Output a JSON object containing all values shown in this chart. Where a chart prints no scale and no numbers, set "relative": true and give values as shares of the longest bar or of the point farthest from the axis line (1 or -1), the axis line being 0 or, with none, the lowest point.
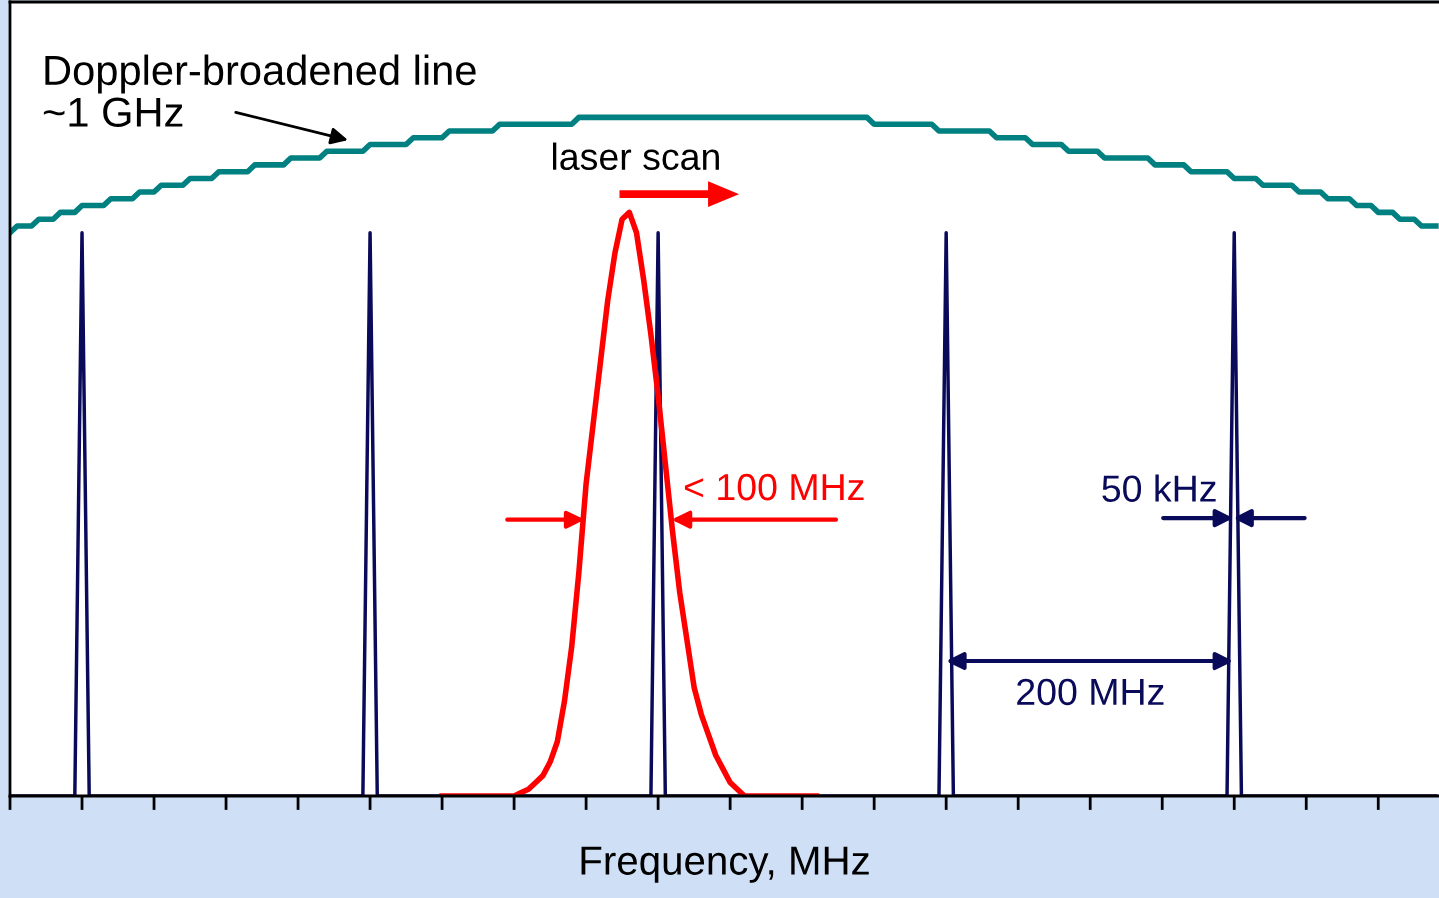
{
  "chart_data": {
    "type": "line",
    "relative": true,
    "xlabel": "Frequency, MHz",
    "categories": [
      null,
      null,
      null,
      null,
      null,
      null,
      null,
      null,
      null,
      null,
      null,
      null,
      null,
      null,
      null,
      null,
      null,
      null,
      null,
      null,
      null,
      null,
      null,
      null,
      null,
      null,
      null,
      null,
      null,
      null,
      null,
      null,
      null,
      null,
      null,
      null,
      null,
      null,
      null,
      null,
      null,
      null,
      null,
      null,
      null,
      null,
      null,
      null,
      null,
      null,
      null,
      null,
      null,
      null,
      null,
      null,
      null,
      null,
      null,
      null,
      null,
      null,
      null,
      null,
      null,
      null,
      null,
      null,
      null,
      null,
      null,
      null,
      null,
      null,
      null,
      null,
      null,
      null,
      null,
      null,
      null,
      null,
      null,
      null,
      null,
      null,
      null,
      null,
      null,
      null,
      null,
      null,
      null,
      null,
      null,
      null,
      null,
      null,
      null,
      null,
      null,
      null,
      null,
      null,
      null,
      null,
      null,
      null,
      null,
      null,
      null,
      null,
      null,
      null,
      null,
      null,
      null,
      null,
      null,
      null,
      null,
      null,
      null,
      null,
      null,
      null,
      null,
      null,
      null,
      null,
      null,
      null,
      null,
      null,
      null,
      null,
      null,
      null,
      null,
      null,
      null,
      null,
      null,
      null,
      null,
      null,
      null,
      null,
      null,
      null,
      null,
      null,
      null,
      null,
      null,
      null,
      null,
      null,
      null,
      null,
      null,
      null,
      null,
      null,
      null,
      null,
      null,
      null,
      null,
      null,
      null,
      null,
      null,
      null,
      null,
      null,
      null,
      null,
      null,
      null,
      null,
      null,
      null,
      null,
      null,
      null,
      null,
      null,
      null,
      null,
      null,
      null,
      null,
      null,
      null,
      null,
      null,
      null,
      null
    ],
    "series": [
      {
        "color": "#008080",
        "values": [
          0.83,
          0.84,
          0.84,
          0.84,
          0.85,
          0.85,
          0.85,
          0.86,
          0.86,
          0.86,
          0.87,
          0.87,
          0.87,
          0.87,
          0.88,
          0.88,
          0.88,
          0.88,
          0.89,
          0.89,
          0.89,
          0.9,
          0.9,
          0.9,
          0.9,
          0.91,
          0.91,
          0.91,
          0.91,
          0.92,
          0.92,
          0.92,
          0.92,
          0.92,
          0.93,
          0.93,
          0.93,
          0.93,
          0.93,
          0.94,
          0.94,
          0.94,
          0.94,
          0.94,
          0.95,
          0.95,
          0.95,
          0.95,
          0.95,
          0.95,
          0.96,
          0.96,
          0.96,
          0.96,
          0.96,
          0.96,
          0.97,
          0.97,
          0.97,
          0.97,
          0.97,
          0.98,
          0.98,
          0.98,
          0.98,
          0.98,
          0.98,
          0.98,
          0.99,
          0.99,
          0.99,
          0.99,
          0.99,
          0.99,
          0.99,
          0.99,
          0.99,
          0.99,
          0.99,
          1,
          1,
          1,
          1,
          1,
          1,
          1,
          1,
          1,
          1,
          1,
          1,
          1,
          1,
          1,
          1,
          1,
          1,
          1,
          1,
          1,
          1,
          1,
          1,
          1,
          1,
          1,
          1,
          1,
          1,
          1,
          1,
          1,
          1,
          1,
          1,
          1,
          1,
          1,
          1,
          1,
          0.99,
          0.99,
          0.99,
          0.99,
          0.99,
          0.99,
          0.99,
          0.99,
          0.99,
          0.98,
          0.98,
          0.98,
          0.98,
          0.98,
          0.98,
          0.98,
          0.98,
          0.97,
          0.97,
          0.97,
          0.97,
          0.97,
          0.96,
          0.96,
          0.96,
          0.96,
          0.96,
          0.95,
          0.95,
          0.95,
          0.95,
          0.95,
          0.94,
          0.94,
          0.94,
          0.94,
          0.94,
          0.94,
          0.94,
          0.93,
          0.93,
          0.93,
          0.93,
          0.93,
          0.92,
          0.92,
          0.92,
          0.92,
          0.92,
          0.92,
          0.91,
          0.91,
          0.91,
          0.91,
          0.9,
          0.9,
          0.9,
          0.9,
          0.9,
          0.89,
          0.89,
          0.89,
          0.89,
          0.88,
          0.88,
          0.88,
          0.88,
          0.87,
          0.87,
          0.87,
          0.86,
          0.86,
          0.86,
          0.85,
          0.85,
          0.85,
          0.84,
          0.84,
          0.84
        ]
      },
      {
        "color": "#0a0a5a",
        "values": [
          0,
          0,
          0,
          0,
          0,
          0,
          0,
          0,
          0,
          0,
          0.83,
          0,
          0,
          0,
          0,
          0,
          0,
          0,
          0,
          0,
          0,
          0,
          0,
          0,
          0,
          0,
          0,
          0,
          0,
          0,
          0,
          0,
          0,
          0,
          0,
          0,
          0,
          0,
          0,
          0,
          0,
          0,
          0,
          0,
          0,
          0,
          0,
          0,
          0,
          0,
          0.83,
          0,
          0,
          0,
          0,
          0,
          0,
          0,
          0,
          0,
          0,
          0,
          0,
          0,
          0,
          0,
          0,
          0,
          0,
          0,
          0,
          0,
          0,
          0,
          0,
          0,
          0,
          0,
          0,
          0,
          0,
          0,
          0,
          0,
          0,
          0,
          0,
          0,
          0,
          0,
          0.83,
          0,
          0,
          0,
          0,
          0,
          0,
          0,
          0,
          0,
          0,
          0,
          0,
          0,
          0,
          0,
          0,
          0,
          0,
          0,
          0,
          0,
          0,
          0,
          0,
          0,
          0,
          0,
          0,
          0,
          0,
          0,
          0,
          0,
          0,
          0,
          0,
          0,
          0,
          0,
          0.83,
          0,
          0,
          0,
          0,
          0,
          0,
          0,
          0,
          0,
          0,
          0,
          0,
          0,
          0,
          0,
          0,
          0,
          0,
          0,
          0,
          0,
          0,
          0,
          0,
          0,
          0,
          0,
          0,
          0,
          0,
          0,
          0,
          0,
          0,
          0,
          0,
          0,
          0,
          0,
          0.83,
          0,
          0,
          0,
          0,
          0,
          0,
          0,
          0,
          0,
          0,
          0,
          0,
          0,
          0,
          0,
          0,
          0,
          0,
          0,
          0,
          0,
          0,
          0,
          0,
          0,
          0,
          0,
          0
        ]
      },
      {
        "color": "#ff0000",
        "values": [
          null,
          null,
          null,
          null,
          null,
          null,
          null,
          null,
          null,
          null,
          null,
          null,
          null,
          null,
          null,
          null,
          null,
          null,
          null,
          null,
          null,
          null,
          null,
          null,
          null,
          null,
          null,
          null,
          null,
          null,
          null,
          null,
          null,
          null,
          null,
          null,
          null,
          null,
          null,
          null,
          null,
          null,
          null,
          null,
          null,
          null,
          null,
          null,
          null,
          null,
          null,
          null,
          null,
          null,
          null,
          null,
          null,
          null,
          null,
          null,
          0,
          0,
          0,
          0,
          0,
          0,
          0,
          0,
          0,
          0,
          0,
          0.005,
          0.01,
          0.02,
          0.03,
          0.05,
          0.08,
          0.14,
          0.22,
          0.33,
          0.46,
          0.55,
          0.64,
          0.73,
          0.8,
          0.85,
          0.86,
          0.83,
          0.76,
          0.68,
          0.59,
          0.49,
          0.39,
          0.3,
          0.23,
          0.16,
          0.12,
          0.09,
          0.06,
          0.04,
          0.02,
          0.01,
          0,
          0,
          0,
          0,
          0,
          0,
          0,
          0,
          0,
          0,
          0,
          null,
          null,
          null,
          null,
          null,
          null,
          null,
          null,
          null,
          null,
          null,
          null,
          null,
          null,
          null,
          null,
          null,
          null,
          null,
          null,
          null,
          null,
          null,
          null,
          null,
          null,
          null,
          null,
          null,
          null,
          null,
          null,
          null,
          null,
          null,
          null,
          null,
          null,
          null,
          null,
          null,
          null,
          null,
          null,
          null,
          null,
          null,
          null,
          null,
          null,
          null,
          null,
          null,
          null,
          null,
          null,
          null,
          null,
          null,
          null,
          null,
          null,
          null,
          null,
          null,
          null,
          null,
          null,
          null,
          null,
          null,
          null,
          null,
          null,
          null,
          null,
          null,
          null,
          null,
          null,
          null,
          null,
          null,
          null,
          null,
          null
        ]
      }
    ],
    "annotations": [
      "Doppler-broadened line\n~1 GHz",
      "laser scan",
      "< 100 MHz",
      "50 kHz",
      "200 MHz"
    ]
  }
}
